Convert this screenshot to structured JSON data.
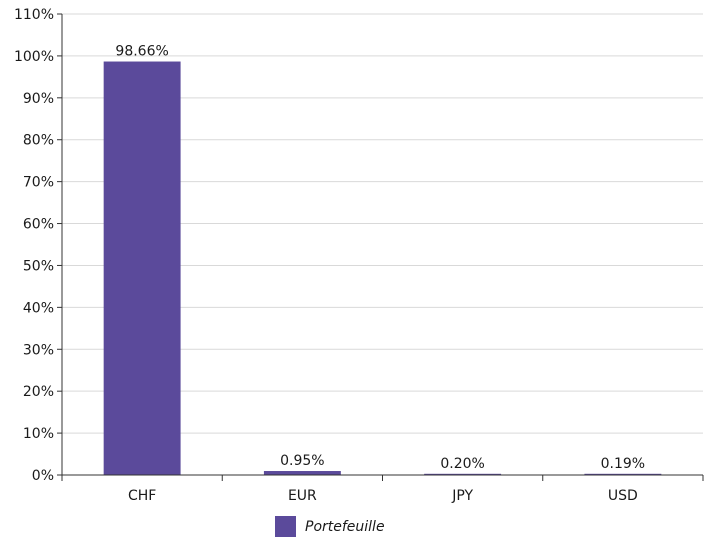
{
  "chart_data": {
    "type": "bar",
    "categories": [
      "CHF",
      "EUR",
      "JPY",
      "USD"
    ],
    "series": [
      {
        "name": "Portefeuille",
        "values": [
          98.66,
          0.95,
          0.2,
          0.19
        ],
        "labels": [
          "98.66%",
          "0.95%",
          "0.20%",
          "0.19%"
        ]
      }
    ],
    "title": "",
    "xlabel": "",
    "ylabel": "",
    "ylim": [
      0,
      110
    ],
    "yticks": [
      0,
      10,
      20,
      30,
      40,
      50,
      60,
      70,
      80,
      90,
      100,
      110
    ],
    "ytick_labels": [
      "0%",
      "10%",
      "20%",
      "30%",
      "40%",
      "50%",
      "60%",
      "70%",
      "80%",
      "90%",
      "100%",
      "110%"
    ],
    "grid": true,
    "legend_position": "bottom",
    "colors": {
      "bar": "#5b4a9b",
      "grid": "#d9d9d9",
      "axis": "#333333"
    }
  }
}
